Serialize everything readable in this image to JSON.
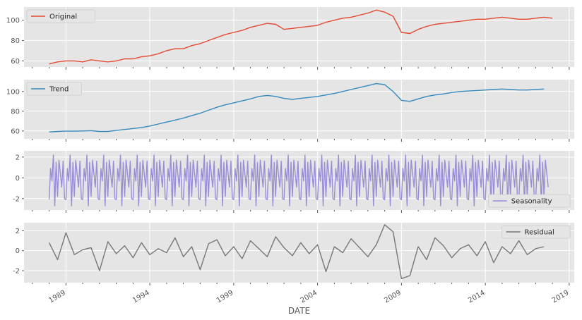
{
  "chart_data": {
    "type": "line",
    "xlabel": "DATE",
    "x_tick_labels": [
      "1989",
      "1994",
      "1999",
      "2004",
      "2009",
      "2014",
      "2019"
    ],
    "x_range": [
      1986.5,
      2019.3
    ],
    "shared_x_start": 1988.0,
    "grid": true,
    "panels": [
      {
        "series": [
          {
            "name": "Original",
            "color": "#E24A33",
            "x": [
              1988.0,
              1988.5,
              1989.0,
              1989.5,
              1990.0,
              1990.5,
              1991.0,
              1991.5,
              1992.0,
              1992.5,
              1993.0,
              1993.5,
              1994.0,
              1994.5,
              1995.0,
              1995.5,
              1996.0,
              1996.5,
              1997.0,
              1997.5,
              1998.0,
              1998.5,
              1999.0,
              1999.5,
              2000.0,
              2000.5,
              2001.0,
              2001.5,
              2002.0,
              2002.5,
              2003.0,
              2003.5,
              2004.0,
              2004.5,
              2005.0,
              2005.5,
              2006.0,
              2006.5,
              2007.0,
              2007.5,
              2008.0,
              2008.5,
              2009.0,
              2009.5,
              2010.0,
              2010.5,
              2011.0,
              2011.5,
              2012.0,
              2012.5,
              2013.0,
              2013.5,
              2014.0,
              2014.5,
              2015.0,
              2015.5,
              2016.0,
              2016.5,
              2017.0,
              2017.5,
              2018.0
            ],
            "values": [
              57,
              59,
              60,
              60,
              59,
              61,
              60,
              59,
              60,
              62,
              62,
              64,
              65,
              67,
              70,
              72,
              72,
              75,
              77,
              80,
              83,
              86,
              88,
              90,
              93,
              95,
              97,
              96,
              91,
              92,
              93,
              94,
              95,
              98,
              100,
              102,
              103,
              105,
              107,
              110,
              108,
              104,
              88,
              87,
              91,
              94,
              96,
              97,
              98,
              99,
              100,
              101,
              101,
              102,
              103,
              102,
              101,
              101,
              102,
              103,
              102
            ],
            "ylim": [
              54,
              113
            ],
            "yticks": [
              60,
              80,
              100
            ]
          }
        ],
        "legend_position": "upper left"
      },
      {
        "series": [
          {
            "name": "Trend",
            "color": "#348ABD",
            "x": [
              1988.0,
              1988.5,
              1989.0,
              1989.5,
              1990.0,
              1990.5,
              1991.0,
              1991.5,
              1992.0,
              1992.5,
              1993.0,
              1993.5,
              1994.0,
              1994.5,
              1995.0,
              1995.5,
              1996.0,
              1996.5,
              1997.0,
              1997.5,
              1998.0,
              1998.5,
              1999.0,
              1999.5,
              2000.0,
              2000.5,
              2001.0,
              2001.5,
              2002.0,
              2002.5,
              2003.0,
              2003.5,
              2004.0,
              2004.5,
              2005.0,
              2005.5,
              2006.0,
              2006.5,
              2007.0,
              2007.5,
              2008.0,
              2008.5,
              2009.0,
              2009.5,
              2010.0,
              2010.5,
              2011.0,
              2011.5,
              2012.0,
              2012.5,
              2013.0,
              2013.5,
              2014.0,
              2014.5,
              2015.0,
              2015.5,
              2016.0,
              2016.5,
              2017.0,
              2017.5
            ],
            "values": [
              59,
              59.5,
              59.8,
              59.8,
              60,
              60.3,
              59.5,
              59.5,
              60.5,
              61.5,
              62.5,
              63.5,
              65,
              67,
              69,
              71,
              73,
              75.5,
              78,
              81,
              84,
              86.5,
              88.5,
              90.5,
              92.5,
              95,
              96,
              95,
              93,
              92,
              93,
              94,
              95,
              96.5,
              98,
              100,
              102,
              104,
              106,
              108,
              107,
              100,
              91,
              90,
              92.5,
              95,
              96.5,
              97.5,
              99,
              100,
              100.5,
              101,
              101.5,
              102,
              102.5,
              102,
              101.5,
              101.5,
              102,
              102.5
            ],
            "ylim": [
              52,
              112
            ],
            "yticks": [
              60,
              80,
              100
            ]
          }
        ],
        "legend_position": "upper left"
      },
      {
        "series": [
          {
            "name": "Seasonality",
            "color": "#988ED5",
            "pattern": [
              -2.1,
              0.9,
              -0.3,
              2.2,
              -2.7,
              1.5,
              -1.8,
              1.7,
              0.4,
              -0.9,
              1.6,
              -2.0
            ],
            "ylim": [
              -3.1,
              2.6
            ],
            "yticks": [
              -2,
              0,
              2
            ]
          }
        ],
        "legend_position": "lower right"
      },
      {
        "series": [
          {
            "name": "Residual",
            "color": "#777777",
            "x": [
              1988.0,
              1988.5,
              1989.0,
              1989.5,
              1990.0,
              1990.5,
              1991.0,
              1991.5,
              1992.0,
              1992.5,
              1993.0,
              1993.5,
              1994.0,
              1994.5,
              1995.0,
              1995.5,
              1996.0,
              1996.5,
              1997.0,
              1997.5,
              1998.0,
              1998.5,
              1999.0,
              1999.5,
              2000.0,
              2000.5,
              2001.0,
              2001.5,
              2002.0,
              2002.5,
              2003.0,
              2003.5,
              2004.0,
              2004.5,
              2005.0,
              2005.5,
              2006.0,
              2006.5,
              2007.0,
              2007.5,
              2008.0,
              2008.5,
              2009.0,
              2009.5,
              2010.0,
              2010.5,
              2011.0,
              2011.5,
              2012.0,
              2012.5,
              2013.0,
              2013.5,
              2014.0,
              2014.5,
              2015.0,
              2015.5,
              2016.0,
              2016.5,
              2017.0,
              2017.5
            ],
            "values": [
              0.8,
              -0.9,
              1.8,
              -0.4,
              0.1,
              0.3,
              -2.0,
              0.9,
              -0.3,
              0.5,
              -0.7,
              0.8,
              -0.4,
              0.2,
              -0.2,
              1.3,
              -0.6,
              0.4,
              -1.9,
              0.7,
              1.1,
              -0.5,
              0.4,
              -0.8,
              1.0,
              0.2,
              -0.6,
              1.4,
              0.3,
              -0.5,
              0.8,
              -0.3,
              0.6,
              -2.1,
              0.4,
              -0.2,
              1.2,
              0.3,
              -0.6,
              0.6,
              2.6,
              1.9,
              -2.8,
              -2.5,
              0.4,
              -0.9,
              1.3,
              0.5,
              -0.7,
              0.2,
              0.6,
              -0.5,
              0.9,
              -1.2,
              0.4,
              -0.3,
              1.0,
              -0.4,
              0.2,
              0.4
            ],
            "ylim": [
              -3.2,
              2.8
            ],
            "yticks": [
              -2,
              0,
              2
            ]
          }
        ],
        "legend_position": "upper right"
      }
    ]
  }
}
